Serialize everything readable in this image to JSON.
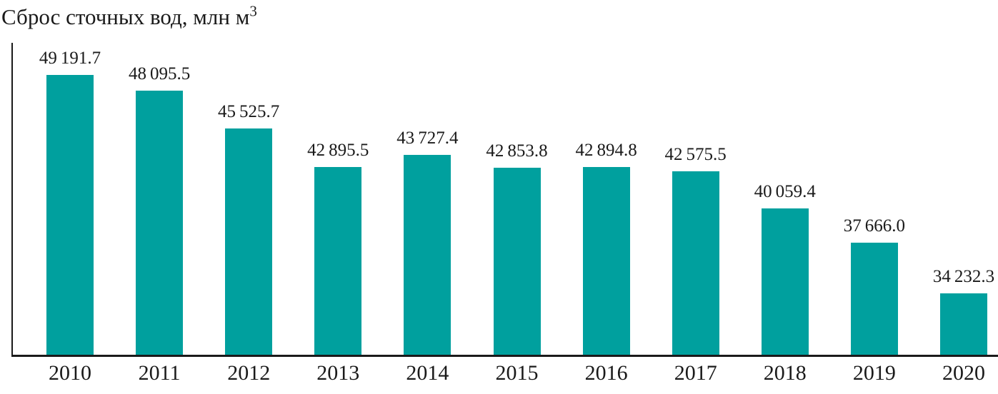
{
  "chart_data": {
    "type": "bar",
    "title_main": "Сброс сточных вод, млн м",
    "title_sup": "3",
    "categories": [
      "2010",
      "2011",
      "2012",
      "2013",
      "2014",
      "2015",
      "2016",
      "2017",
      "2018",
      "2019",
      "2020"
    ],
    "values": [
      49191.7,
      48095.5,
      45525.7,
      42895.5,
      43727.4,
      42853.8,
      42894.8,
      42575.5,
      40059.4,
      37666.0,
      34232.3
    ],
    "value_labels": [
      "49 191.7",
      "48 095.5",
      "45 525.7",
      "42 895.5",
      "43 727.4",
      "42 853.8",
      "42 894.8",
      "42 575.5",
      "40 059.4",
      "37 666.0",
      "34 232.3"
    ],
    "xlabel": "",
    "ylabel": "",
    "ylim": [
      30000,
      51400
    ],
    "grid": false,
    "legend": false,
    "bar_color": "#00a09e",
    "axis_color": "#1a1a1a"
  }
}
